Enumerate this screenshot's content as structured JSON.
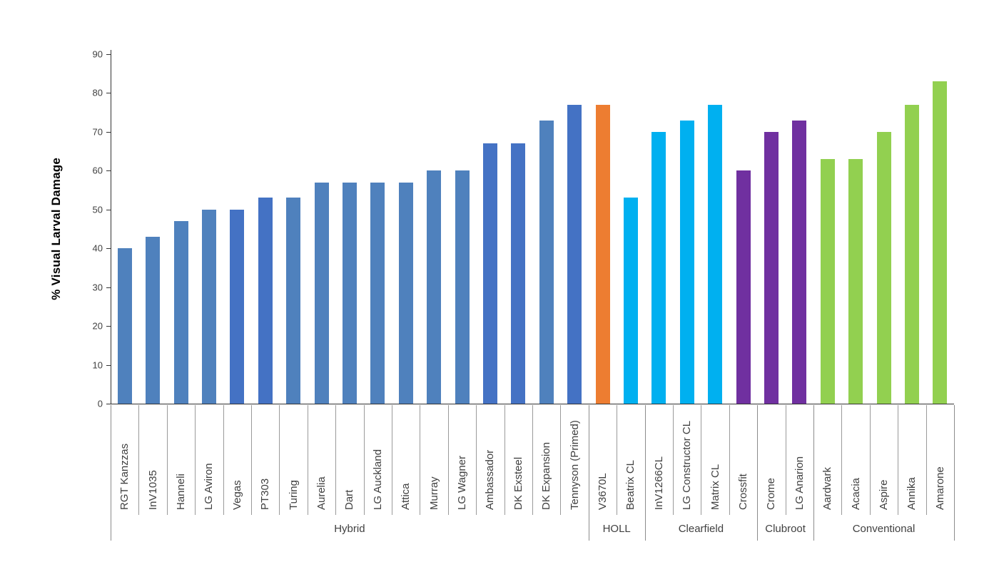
{
  "chart_data": {
    "type": "bar",
    "title": "",
    "xlabel": "",
    "ylabel": "% Visual Larval Damage",
    "ylim": [
      0,
      90
    ],
    "yticks": [
      0,
      10,
      20,
      30,
      40,
      50,
      60,
      70,
      80,
      90
    ],
    "grid": false,
    "legend_position": "none",
    "bar_colors_legend": {
      "hybrid_muted_blue": "#4F81BD",
      "hybrid_vivid_blue": "#4472C4",
      "holl_orange": "#ED7D31",
      "clearfield_cyan": "#00B0F0",
      "clubroot_purple": "#7030A0",
      "conventional_green": "#92D050"
    },
    "categories": [
      {
        "label": "RGT Kanzzas",
        "value": 40,
        "color": "#4F81BD",
        "group": "Hybrid"
      },
      {
        "label": "InV1035",
        "value": 43,
        "color": "#4F81BD",
        "group": "Hybrid"
      },
      {
        "label": "Hanneli",
        "value": 47,
        "color": "#4F81BD",
        "group": "Hybrid"
      },
      {
        "label": "LG Aviron",
        "value": 50,
        "color": "#4F81BD",
        "group": "Hybrid"
      },
      {
        "label": "Vegas",
        "value": 50,
        "color": "#4472C4",
        "group": "Hybrid"
      },
      {
        "label": "PT303",
        "value": 53,
        "color": "#4472C4",
        "group": "Hybrid"
      },
      {
        "label": "Turing",
        "value": 53,
        "color": "#4F81BD",
        "group": "Hybrid"
      },
      {
        "label": "Aurelia",
        "value": 57,
        "color": "#4F81BD",
        "group": "Hybrid"
      },
      {
        "label": "Dart",
        "value": 57,
        "color": "#4F81BD",
        "group": "Hybrid"
      },
      {
        "label": "LG Auckland",
        "value": 57,
        "color": "#4F81BD",
        "group": "Hybrid"
      },
      {
        "label": "Attica",
        "value": 57,
        "color": "#4F81BD",
        "group": "Hybrid"
      },
      {
        "label": "Murray",
        "value": 60,
        "color": "#4F81BD",
        "group": "Hybrid"
      },
      {
        "label": "LG Wagner",
        "value": 60,
        "color": "#4F81BD",
        "group": "Hybrid"
      },
      {
        "label": "Ambassador",
        "value": 67,
        "color": "#4472C4",
        "group": "Hybrid"
      },
      {
        "label": "DK Exsteel",
        "value": 67,
        "color": "#4472C4",
        "group": "Hybrid"
      },
      {
        "label": "DK Expansion",
        "value": 73,
        "color": "#4F81BD",
        "group": "Hybrid"
      },
      {
        "label": "Tennyson (Primed)",
        "value": 77,
        "color": "#4472C4",
        "group": "Hybrid"
      },
      {
        "label": "V3670L",
        "value": 77,
        "color": "#ED7D31",
        "group": "HOLL"
      },
      {
        "label": "Beatrix CL",
        "value": 53,
        "color": "#00B0F0",
        "group": "HOLL"
      },
      {
        "label": "InV1266CL",
        "value": 70,
        "color": "#00B0F0",
        "group": "Clearfield"
      },
      {
        "label": "LG Constructor CL",
        "value": 73,
        "color": "#00B0F0",
        "group": "Clearfield"
      },
      {
        "label": "Matrix CL",
        "value": 77,
        "color": "#00B0F0",
        "group": "Clearfield"
      },
      {
        "label": "Crossfit",
        "value": 60,
        "color": "#7030A0",
        "group": "Clearfield"
      },
      {
        "label": "Crome",
        "value": 70,
        "color": "#7030A0",
        "group": "Clubroot"
      },
      {
        "label": "LG Anarion",
        "value": 73,
        "color": "#7030A0",
        "group": "Clubroot"
      },
      {
        "label": "Aardvark",
        "value": 63,
        "color": "#92D050",
        "group": "Conventional"
      },
      {
        "label": "Acacia",
        "value": 63,
        "color": "#92D050",
        "group": "Conventional"
      },
      {
        "label": "Aspire",
        "value": 70,
        "color": "#92D050",
        "group": "Conventional"
      },
      {
        "label": "Annika",
        "value": 77,
        "color": "#92D050",
        "group": "Conventional"
      },
      {
        "label": "Amarone",
        "value": 83,
        "color": "#92D050",
        "group": "Conventional"
      }
    ],
    "groups": [
      {
        "label": "Hybrid",
        "count": 17
      },
      {
        "label": "HOLL",
        "count": 2
      },
      {
        "label": "Clearfield",
        "count": 4
      },
      {
        "label": "Clubroot",
        "count": 2
      },
      {
        "label": "Conventional",
        "count": 5
      }
    ]
  }
}
